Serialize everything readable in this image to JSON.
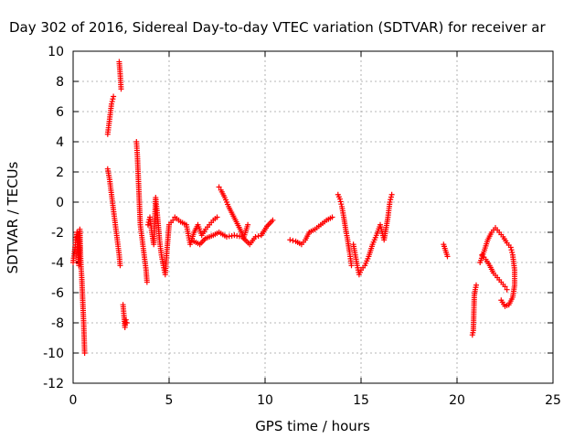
{
  "chart_data": {
    "type": "scatter",
    "title": "Day 302 of 2016, Sidereal Day-to-day VTEC variation (SDTVAR) for receiver ar",
    "xlabel": "GPS time / hours",
    "ylabel": "SDTVAR / TECUs",
    "xlim": [
      0,
      25
    ],
    "ylim": [
      -12,
      10
    ],
    "x_ticks": [
      "0",
      "5",
      "10",
      "15",
      "20",
      "25"
    ],
    "y_ticks": [
      "-12",
      "-10",
      "-8",
      "-6",
      "-4",
      "-2",
      "0",
      "2",
      "4",
      "6",
      "8",
      "10"
    ],
    "grid": true,
    "marker": "+",
    "color": "#ff0000",
    "series": [
      {
        "name": "SDTVAR",
        "segments": [
          [
            [
              0.0,
              -4.0
            ],
            [
              0.1,
              -3.0
            ],
            [
              0.15,
              -2.5
            ],
            [
              0.2,
              -2.0
            ],
            [
              0.25,
              -3.5
            ],
            [
              0.3,
              -4.2
            ],
            [
              0.35,
              -1.8
            ],
            [
              0.4,
              -4.0
            ],
            [
              0.45,
              -5.0
            ],
            [
              0.5,
              -6.5
            ],
            [
              0.55,
              -8.0
            ],
            [
              0.6,
              -10.0
            ]
          ],
          [
            [
              1.8,
              4.5
            ],
            [
              1.9,
              5.5
            ],
            [
              2.0,
              6.5
            ],
            [
              2.1,
              7.0
            ]
          ],
          [
            [
              2.4,
              9.3
            ],
            [
              2.45,
              8.5
            ],
            [
              2.5,
              7.5
            ]
          ],
          [
            [
              1.8,
              2.2
            ],
            [
              1.9,
              1.5
            ],
            [
              2.0,
              0.5
            ],
            [
              2.1,
              -0.5
            ],
            [
              2.2,
              -1.5
            ],
            [
              2.3,
              -2.5
            ],
            [
              2.4,
              -3.5
            ],
            [
              2.45,
              -4.2
            ]
          ],
          [
            [
              2.6,
              -6.8
            ],
            [
              2.65,
              -7.5
            ],
            [
              2.7,
              -8.3
            ],
            [
              2.75,
              -7.8
            ],
            [
              2.8,
              -8.0
            ]
          ],
          [
            [
              3.3,
              4.0
            ],
            [
              3.35,
              3.0
            ],
            [
              3.4,
              1.5
            ],
            [
              3.45,
              0.0
            ],
            [
              3.5,
              -1.5
            ],
            [
              3.6,
              -2.5
            ],
            [
              3.7,
              -3.5
            ],
            [
              3.8,
              -4.5
            ],
            [
              3.85,
              -5.3
            ]
          ],
          [
            [
              3.9,
              -1.5
            ],
            [
              4.0,
              -1.0
            ],
            [
              4.1,
              -2.0
            ],
            [
              4.2,
              -2.8
            ],
            [
              4.3,
              0.3
            ],
            [
              4.4,
              -1.0
            ],
            [
              4.5,
              -2.5
            ],
            [
              4.6,
              -3.5
            ],
            [
              4.7,
              -4.2
            ],
            [
              4.8,
              -4.8
            ],
            [
              4.9,
              -3.0
            ],
            [
              5.0,
              -1.5
            ],
            [
              5.2,
              -1.2
            ]
          ],
          [
            [
              5.3,
              -1.0
            ],
            [
              5.6,
              -1.3
            ],
            [
              5.9,
              -1.5
            ],
            [
              6.1,
              -2.8
            ],
            [
              6.3,
              -2.0
            ],
            [
              6.5,
              -1.5
            ],
            [
              6.7,
              -2.2
            ],
            [
              6.9,
              -1.8
            ],
            [
              7.1,
              -1.5
            ],
            [
              7.3,
              -1.2
            ],
            [
              7.5,
              -1.0
            ]
          ],
          [
            [
              7.6,
              1.0
            ],
            [
              7.7,
              0.8
            ],
            [
              7.9,
              0.3
            ],
            [
              8.1,
              -0.3
            ],
            [
              8.3,
              -0.8
            ],
            [
              8.5,
              -1.3
            ],
            [
              8.7,
              -1.8
            ],
            [
              8.9,
              -2.3
            ],
            [
              9.1,
              -1.5
            ]
          ],
          [
            [
              6.3,
              -2.6
            ],
            [
              6.6,
              -2.8
            ],
            [
              6.9,
              -2.4
            ],
            [
              7.3,
              -2.2
            ],
            [
              7.6,
              -2.0
            ],
            [
              8.0,
              -2.3
            ],
            [
              8.4,
              -2.2
            ],
            [
              8.8,
              -2.3
            ],
            [
              9.2,
              -2.8
            ],
            [
              9.5,
              -2.3
            ],
            [
              9.8,
              -2.2
            ],
            [
              10.1,
              -1.6
            ],
            [
              10.4,
              -1.2
            ]
          ],
          [
            [
              11.3,
              -2.5
            ],
            [
              11.6,
              -2.6
            ],
            [
              11.9,
              -2.8
            ],
            [
              12.1,
              -2.5
            ],
            [
              12.3,
              -2.0
            ],
            [
              12.6,
              -1.8
            ],
            [
              12.9,
              -1.5
            ],
            [
              13.2,
              -1.2
            ],
            [
              13.5,
              -1.0
            ]
          ],
          [
            [
              13.8,
              0.5
            ],
            [
              13.9,
              0.2
            ],
            [
              14.0,
              -0.3
            ],
            [
              14.1,
              -1.0
            ],
            [
              14.2,
              -1.8
            ],
            [
              14.3,
              -2.5
            ],
            [
              14.4,
              -3.3
            ],
            [
              14.5,
              -4.2
            ]
          ],
          [
            [
              14.6,
              -2.8
            ],
            [
              14.7,
              -3.5
            ],
            [
              14.8,
              -4.2
            ],
            [
              14.9,
              -4.8
            ],
            [
              15.0,
              -4.5
            ],
            [
              15.2,
              -4.2
            ],
            [
              15.4,
              -3.6
            ],
            [
              15.6,
              -2.8
            ],
            [
              15.8,
              -2.2
            ],
            [
              16.0,
              -1.5
            ],
            [
              16.2,
              -2.5
            ],
            [
              16.4,
              -1.0
            ],
            [
              16.5,
              0.0
            ],
            [
              16.6,
              0.5
            ]
          ],
          [
            [
              19.3,
              -2.8
            ],
            [
              19.4,
              -3.2
            ],
            [
              19.5,
              -3.6
            ]
          ],
          [
            [
              20.8,
              -8.8
            ],
            [
              20.85,
              -8.5
            ],
            [
              20.9,
              -6.2
            ],
            [
              20.95,
              -5.8
            ],
            [
              21.0,
              -5.5
            ]
          ],
          [
            [
              21.2,
              -4.0
            ],
            [
              21.4,
              -3.3
            ],
            [
              21.6,
              -2.5
            ],
            [
              21.8,
              -2.0
            ],
            [
              22.0,
              -1.7
            ],
            [
              22.2,
              -2.0
            ],
            [
              22.4,
              -2.3
            ],
            [
              22.6,
              -2.7
            ],
            [
              22.8,
              -3.0
            ],
            [
              22.9,
              -3.5
            ],
            [
              23.0,
              -4.5
            ],
            [
              23.0,
              -5.5
            ],
            [
              22.9,
              -6.3
            ],
            [
              22.7,
              -6.8
            ],
            [
              22.5,
              -6.9
            ],
            [
              22.3,
              -6.5
            ]
          ],
          [
            [
              21.3,
              -3.5
            ],
            [
              21.5,
              -3.8
            ],
            [
              21.7,
              -4.2
            ],
            [
              21.9,
              -4.7
            ],
            [
              22.1,
              -5.0
            ],
            [
              22.3,
              -5.3
            ],
            [
              22.5,
              -5.6
            ],
            [
              22.6,
              -5.8
            ]
          ]
        ]
      }
    ]
  }
}
